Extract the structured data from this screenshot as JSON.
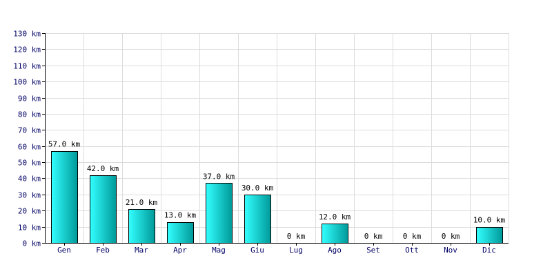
{
  "chart_data": {
    "type": "bar",
    "categories": [
      "Gen",
      "Feb",
      "Mar",
      "Apr",
      "Mag",
      "Giu",
      "Lug",
      "Ago",
      "Set",
      "Ott",
      "Nov",
      "Dic"
    ],
    "values": [
      57.0,
      42.0,
      21.0,
      13.0,
      37.0,
      30.0,
      0,
      12.0,
      0,
      0,
      0,
      10.0
    ],
    "value_labels": [
      "57.0 km",
      "42.0 km",
      "21.0 km",
      "13.0 km",
      "37.0 km",
      "30.0 km",
      "0 km",
      "12.0 km",
      "0 km",
      "0 km",
      "0 km",
      "10.0 km"
    ],
    "unit": "km",
    "title": "",
    "xlabel": "",
    "ylabel": "",
    "ylim": [
      0,
      130
    ],
    "y_ticks": [
      0,
      10,
      20,
      30,
      40,
      50,
      60,
      70,
      80,
      90,
      100,
      110,
      120,
      130
    ],
    "y_tick_labels": [
      "0 km",
      "10 km",
      "20 km",
      "30 km",
      "40 km",
      "50 km",
      "60 km",
      "70 km",
      "80 km",
      "90 km",
      "100 km",
      "110 km",
      "120 km",
      "130 km"
    ],
    "grid": true,
    "legend": "none",
    "colors": {
      "bar_light": "#33ffff",
      "bar_dark": "#009999",
      "bar_stroke": "#000000",
      "grid": "#dcdcdc",
      "axis": "#000000"
    }
  }
}
